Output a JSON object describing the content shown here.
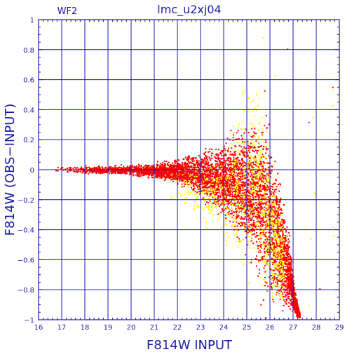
{
  "chart_data": {
    "type": "scatter",
    "title": "lmc_u2xj04",
    "panel_label": "WF2",
    "xlabel": "F814W  INPUT",
    "ylabel": "F814W  (OBS−INPUT)",
    "xlim": [
      16,
      29
    ],
    "ylim": [
      -1,
      1
    ],
    "x_ticks": [
      16,
      17,
      18,
      19,
      20,
      21,
      22,
      23,
      24,
      25,
      26,
      27,
      28,
      29
    ],
    "y_ticks": [
      -1,
      -0.8,
      -0.6,
      -0.4,
      -0.2,
      0,
      0.2,
      0.4,
      0.6,
      0.8,
      1
    ],
    "x_tick_labels": [
      "16",
      "17",
      "18",
      "19",
      "20",
      "21",
      "22",
      "23",
      "24",
      "25",
      "26",
      "27",
      "28",
      "29"
    ],
    "y_tick_labels": [
      "−1",
      "−0.8",
      "−0.6",
      "−0.4",
      "−0.2",
      "0",
      "0.2",
      "0.4",
      "0.6",
      "0.8",
      "1"
    ],
    "grid": true,
    "colors": {
      "axes": "#1a1aa8",
      "grid": "#1a1aa8"
    },
    "series": [
      {
        "color": "#ff0000",
        "envelope": [
          [
            16.6,
            -0.03,
            0.03
          ],
          [
            17.0,
            -0.03,
            0.03
          ],
          [
            18.0,
            -0.03,
            0.03
          ],
          [
            19.0,
            -0.04,
            0.03
          ],
          [
            20.0,
            -0.05,
            0.04
          ],
          [
            21.0,
            -0.07,
            0.05
          ],
          [
            22.0,
            -0.12,
            0.09
          ],
          [
            22.5,
            -0.16,
            0.12
          ],
          [
            23.0,
            -0.22,
            0.15
          ],
          [
            23.5,
            -0.28,
            0.19
          ],
          [
            24.0,
            -0.36,
            0.23
          ],
          [
            24.5,
            -0.48,
            0.3
          ],
          [
            25.0,
            -0.62,
            0.36
          ],
          [
            25.5,
            -0.8,
            0.42
          ],
          [
            25.8,
            -0.95,
            0.48
          ],
          [
            26.0,
            -1.0,
            0.35
          ],
          [
            26.3,
            -1.0,
            0.15
          ],
          [
            26.6,
            -1.0,
            -0.15
          ],
          [
            26.9,
            -1.0,
            -0.45
          ],
          [
            27.1,
            -1.0,
            -0.8
          ],
          [
            27.3,
            -1.0,
            -0.95
          ]
        ]
      },
      {
        "color": "#ffff00",
        "envelope": [
          [
            21.5,
            -0.2,
            0.05
          ],
          [
            22.0,
            -0.28,
            0.08
          ],
          [
            22.5,
            -0.35,
            0.1
          ],
          [
            23.0,
            -0.42,
            0.12
          ],
          [
            23.5,
            -0.5,
            0.15
          ],
          [
            24.0,
            -0.6,
            0.2
          ],
          [
            24.5,
            -0.7,
            0.45
          ],
          [
            25.0,
            -0.8,
            0.65
          ],
          [
            25.5,
            -0.9,
            0.85
          ],
          [
            25.9,
            -0.95,
            0.3
          ],
          [
            26.2,
            -1.0,
            0.1
          ],
          [
            26.6,
            -1.0,
            -0.3
          ]
        ]
      }
    ]
  }
}
